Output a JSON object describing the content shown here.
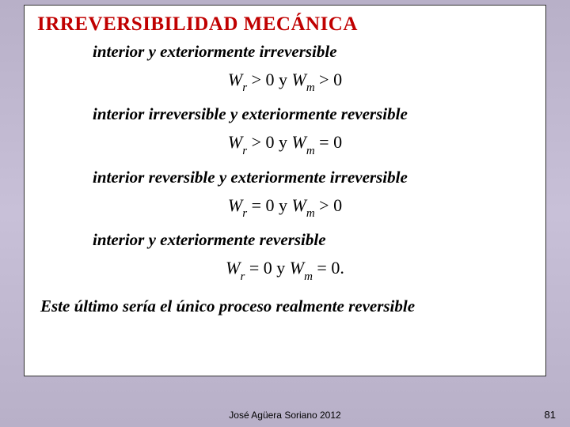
{
  "title": "IRREVERSIBILIDAD  MECÁNICA",
  "cases": [
    {
      "label": "interior y exteriormente irreversible",
      "wr_op": ">",
      "wm_op": ">",
      "tail": ""
    },
    {
      "label": "interior irreversible y exteriormente reversible",
      "wr_op": ">",
      "wm_op": "=",
      "tail": ""
    },
    {
      "label": "interior reversible y exteriormente irreversible",
      "wr_op": "=",
      "wm_op": ">",
      "tail": ""
    },
    {
      "label": "interior y exteriormente reversible",
      "wr_op": "=",
      "wm_op": "=",
      "tail": "."
    }
  ],
  "conclusion": "Este último sería el único proceso realmente reversible",
  "footer": "José Agüera Soriano 2012",
  "page": "81",
  "colors": {
    "title": "#c00000",
    "text": "#000000",
    "box_bg": "#ffffff",
    "box_border": "#333333",
    "page_bg_top": "#b8b0c8",
    "page_bg_mid": "#c8c0d8"
  }
}
